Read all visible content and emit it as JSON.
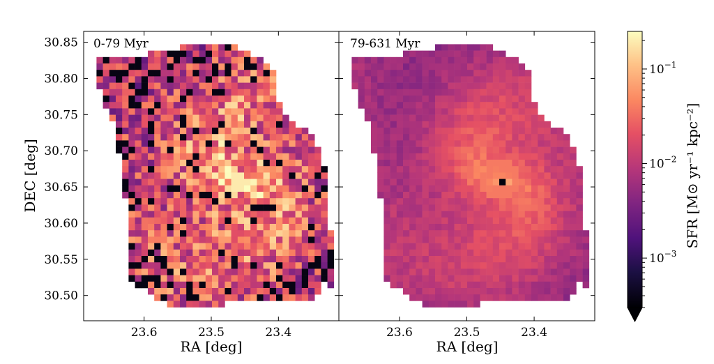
{
  "chart_data": [
    {
      "type": "heatmap",
      "title": "0-79 Myr",
      "xlabel": "RA [deg]",
      "ylabel": "DEC [deg]",
      "xlim": [
        23.69,
        23.31
      ],
      "ylim": [
        30.465,
        30.865
      ],
      "x_ticks": [
        {
          "value": 23.6,
          "label": "23.6"
        },
        {
          "value": 23.5,
          "label": "23.5"
        },
        {
          "value": 23.4,
          "label": "23.4"
        }
      ],
      "y_ticks": [
        {
          "value": 30.5,
          "label": "30.50"
        },
        {
          "value": 30.55,
          "label": "30.55"
        },
        {
          "value": 30.6,
          "label": "30.60"
        },
        {
          "value": 30.65,
          "label": "30.65"
        },
        {
          "value": 30.7,
          "label": "30.70"
        },
        {
          "value": 30.75,
          "label": "30.75"
        },
        {
          "value": 30.8,
          "label": "30.80"
        },
        {
          "value": 30.85,
          "label": "30.85"
        }
      ],
      "grid": false,
      "peak": {
        "ra": 23.46,
        "dec": 30.66,
        "sfr": 0.2
      }
    },
    {
      "type": "heatmap",
      "title": "79-631 Myr",
      "xlabel": "RA [deg]",
      "ylabel": "",
      "xlim": [
        23.69,
        23.31
      ],
      "ylim": [
        30.465,
        30.865
      ],
      "x_ticks": [
        {
          "value": 23.6,
          "label": "23.6"
        },
        {
          "value": 23.5,
          "label": "23.5"
        },
        {
          "value": 23.4,
          "label": "23.4"
        }
      ],
      "grid": false,
      "peak": {
        "ra": 23.45,
        "dec": 30.66,
        "sfr": 0.06
      }
    }
  ],
  "colorbar": {
    "label": "SFR [M⊙ yr⁻¹ kpc⁻²]",
    "scale": "log",
    "range": [
      0.0003,
      0.25
    ],
    "extend": "min",
    "colormap": "magma",
    "ticks": [
      {
        "value": 0.001,
        "base": "10",
        "exp": "−3"
      },
      {
        "value": 0.01,
        "base": "10",
        "exp": "−2"
      },
      {
        "value": 0.1,
        "base": "10",
        "exp": "−1"
      }
    ]
  }
}
